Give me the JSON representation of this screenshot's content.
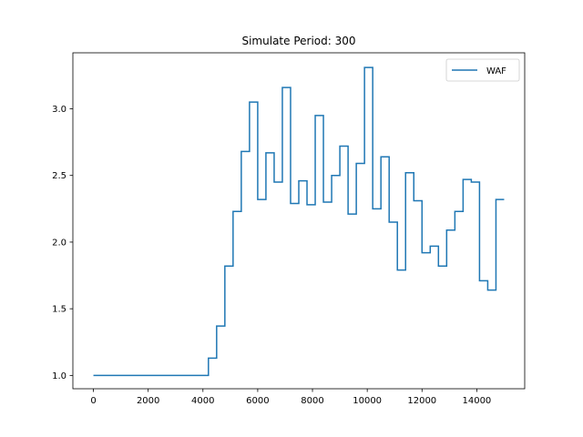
{
  "chart_data": {
    "type": "line",
    "step": "post",
    "title": "Simulate Period: 300",
    "xlabel": "",
    "ylabel": "",
    "xlim": [
      -750,
      15750
    ],
    "ylim": [
      0.9,
      3.42
    ],
    "xticks": [
      0,
      2000,
      4000,
      6000,
      8000,
      10000,
      12000,
      14000
    ],
    "xtick_labels": [
      "0",
      "2000",
      "4000",
      "6000",
      "8000",
      "10000",
      "12000",
      "14000"
    ],
    "yticks": [
      1.0,
      1.5,
      2.0,
      2.5,
      3.0
    ],
    "ytick_labels": [
      "1.0",
      "1.5",
      "2.0",
      "2.5",
      "3.0"
    ],
    "grid": false,
    "legend": {
      "position": "top-right",
      "entries": [
        "WAF"
      ]
    },
    "series": [
      {
        "name": "WAF",
        "color": "#1f77b4",
        "x": [
          0,
          4200,
          4500,
          4800,
          5100,
          5400,
          5700,
          6000,
          6300,
          6600,
          6900,
          7200,
          7500,
          7800,
          8100,
          8400,
          8700,
          9000,
          9300,
          9600,
          9900,
          10200,
          10500,
          10800,
          11100,
          11400,
          11700,
          12000,
          12300,
          12600,
          12900,
          13200,
          13500,
          13800,
          14100,
          14400,
          14700,
          15000
        ],
        "y": [
          1.0,
          1.13,
          1.37,
          1.82,
          2.23,
          2.68,
          3.05,
          2.32,
          2.67,
          2.45,
          3.16,
          2.29,
          2.46,
          2.28,
          2.95,
          2.3,
          2.5,
          2.72,
          2.21,
          2.59,
          3.31,
          2.25,
          2.64,
          2.15,
          1.79,
          2.52,
          2.31,
          1.92,
          1.97,
          1.82,
          2.09,
          2.23,
          2.47,
          2.45,
          1.71,
          1.64,
          2.32,
          2.32
        ]
      }
    ]
  }
}
